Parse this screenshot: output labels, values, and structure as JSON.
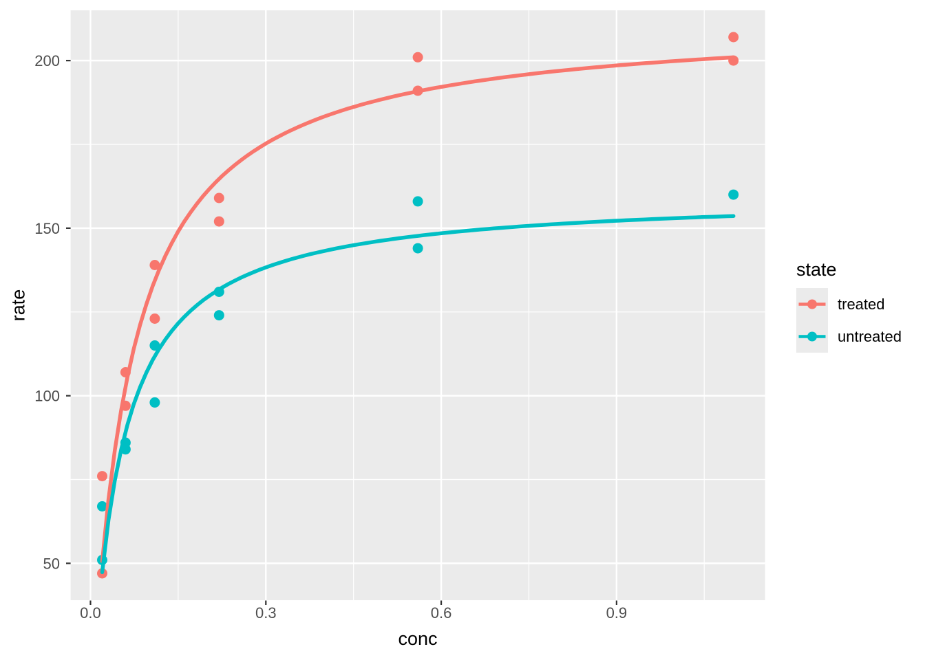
{
  "figure": {
    "background": "#FFFFFF"
  },
  "chart_data": {
    "type": "scatter",
    "title": "",
    "xlabel": "conc",
    "ylabel": "rate",
    "legend_title": "state",
    "legend_position": "right",
    "panel_background": "#EBEBEB",
    "grid_color": "#FFFFFF",
    "grid": true,
    "axis_text_color": "#4D4D4D",
    "tick_color": "#333333",
    "xlim": [
      -0.034,
      1.154
    ],
    "ylim": [
      39,
      215
    ],
    "x_ticks": [
      0.0,
      0.3,
      0.6,
      0.9
    ],
    "x_tick_labels": [
      "0.0",
      "0.3",
      "0.6",
      "0.9"
    ],
    "x_minor": [
      0.15,
      0.45,
      0.75,
      1.05
    ],
    "y_ticks": [
      50,
      100,
      150,
      200
    ],
    "y_tick_labels": [
      "50",
      "100",
      "150",
      "200"
    ],
    "y_minor": [
      75,
      125,
      175
    ],
    "series": [
      {
        "name": "treated",
        "color": "#F8766D",
        "points": [
          [
            0.02,
            76
          ],
          [
            0.02,
            47
          ],
          [
            0.06,
            97
          ],
          [
            0.06,
            107
          ],
          [
            0.11,
            123
          ],
          [
            0.11,
            139
          ],
          [
            0.22,
            159
          ],
          [
            0.22,
            152
          ],
          [
            0.56,
            191
          ],
          [
            0.56,
            201
          ],
          [
            1.1,
            207
          ],
          [
            1.1,
            200
          ]
        ],
        "fit": {
          "model": "michaelis-menten",
          "Vm": 212.68,
          "K": 0.0641,
          "x_range": [
            0.02,
            1.1
          ]
        }
      },
      {
        "name": "untreated",
        "color": "#00BFC4",
        "points": [
          [
            0.02,
            67
          ],
          [
            0.02,
            51
          ],
          [
            0.06,
            84
          ],
          [
            0.06,
            86
          ],
          [
            0.11,
            98
          ],
          [
            0.11,
            115
          ],
          [
            0.22,
            131
          ],
          [
            0.22,
            124
          ],
          [
            0.56,
            144
          ],
          [
            0.56,
            158
          ],
          [
            1.1,
            160
          ]
        ],
        "fit": {
          "model": "michaelis-menten",
          "Vm": 160.28,
          "K": 0.0477,
          "x_range": [
            0.02,
            1.1
          ]
        }
      }
    ]
  }
}
